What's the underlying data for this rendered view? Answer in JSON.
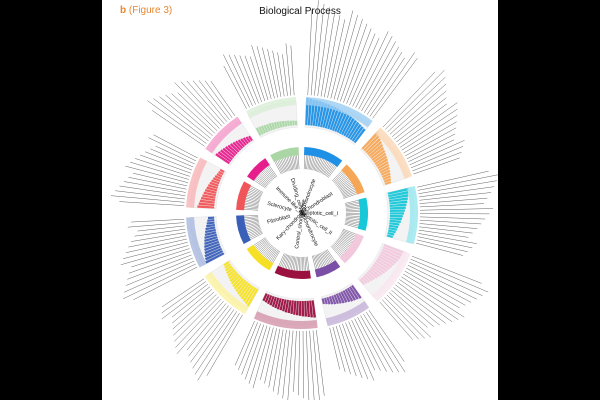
{
  "figure": {
    "panel_letter": "b",
    "panel_ref": "(Figure 3)",
    "accent_color": "#e8872f"
  },
  "chart_data": {
    "type": "circular-bar",
    "title": "Biological Process",
    "categories": [
      {
        "name": "Chondrocyte",
        "color": "#1e90e6",
        "values": [
          0.98,
          0.95,
          0.93,
          0.92,
          0.9,
          0.88,
          0.86,
          0.85,
          0.83,
          0.82,
          0.8,
          0.78,
          0.76,
          0.75,
          0.73,
          0.72,
          0.7,
          0.68,
          0.66,
          0.64,
          0.62,
          0.6
        ]
      },
      {
        "name": "Chondroblast",
        "color": "#f5a656",
        "values": [
          0.8,
          0.74,
          0.7,
          0.66,
          0.62,
          0.58,
          0.55,
          0.52,
          0.49,
          0.46,
          0.43,
          0.4,
          0.37,
          0.34,
          0.31,
          0.28,
          0.25,
          0.22
        ]
      },
      {
        "name": "Apoptotic_cell_I",
        "color": "#18c7d8",
        "values": [
          0.75,
          0.72,
          0.7,
          0.67,
          0.64,
          0.6,
          0.57,
          0.53,
          0.5,
          0.46,
          0.43,
          0.4,
          0.36,
          0.33,
          0.3,
          0.27,
          0.24,
          0.21
        ]
      },
      {
        "name": "Apoptotic_cell_II",
        "color": "#f2c8dc",
        "values": [
          0.78,
          0.75,
          0.72,
          0.69,
          0.66,
          0.63,
          0.6,
          0.56,
          0.53,
          0.5,
          0.46,
          0.43,
          0.4,
          0.36,
          0.33,
          0.3,
          0.27,
          0.24
        ]
      },
      {
        "name": "Fibrochondrocyte",
        "color": "#7b4fa5",
        "values": [
          0.55,
          0.52,
          0.5,
          0.48,
          0.45,
          0.42,
          0.4,
          0.37,
          0.34,
          0.32,
          0.29,
          0.26,
          0.23,
          0.2
        ]
      },
      {
        "name": "Control_chondrocyte",
        "color": "#9a1140",
        "values": [
          0.62,
          0.6,
          0.58,
          0.56,
          0.55,
          0.53,
          0.51,
          0.5,
          0.48,
          0.46,
          0.45,
          0.43,
          0.41,
          0.4,
          0.38,
          0.36,
          0.34,
          0.32,
          0.3,
          0.28
        ]
      },
      {
        "name": "Kary-chondrocyte",
        "color": "#f6e025",
        "values": [
          0.7,
          0.66,
          0.63,
          0.6,
          0.57,
          0.54,
          0.51,
          0.48,
          0.45,
          0.42,
          0.39,
          0.36,
          0.33,
          0.3,
          0.27,
          0.24,
          0.21
        ]
      },
      {
        "name": "Fibroblast",
        "color": "#3a5fb8",
        "values": [
          0.72,
          0.68,
          0.65,
          0.61,
          0.58,
          0.55,
          0.51,
          0.48,
          0.45,
          0.41,
          0.38,
          0.35,
          0.31,
          0.28,
          0.25,
          0.22
        ]
      },
      {
        "name": "Sclerocyte",
        "color": "#f0555a",
        "values": [
          0.6,
          0.56,
          0.53,
          0.5,
          0.47,
          0.44,
          0.41,
          0.38,
          0.35,
          0.32,
          0.29,
          0.26,
          0.23,
          0.2,
          0.18,
          0.16
        ]
      },
      {
        "name": "Immune-like_cell",
        "color": "#e61e8c",
        "values": [
          0.58,
          0.55,
          0.52,
          0.49,
          0.46,
          0.43,
          0.4,
          0.37,
          0.34,
          0.31,
          0.28,
          0.25,
          0.22,
          0.19
        ]
      },
      {
        "name": "Dividing_cell",
        "color": "#a9d6a4",
        "values": [
          0.3,
          0.29,
          0.28,
          0.27,
          0.26,
          0.26,
          0.25,
          0.24,
          0.23,
          0.22,
          0.21,
          0.2,
          0.19,
          0.18,
          0.17,
          0.16
        ]
      }
    ],
    "grid": false,
    "legend": "none"
  }
}
